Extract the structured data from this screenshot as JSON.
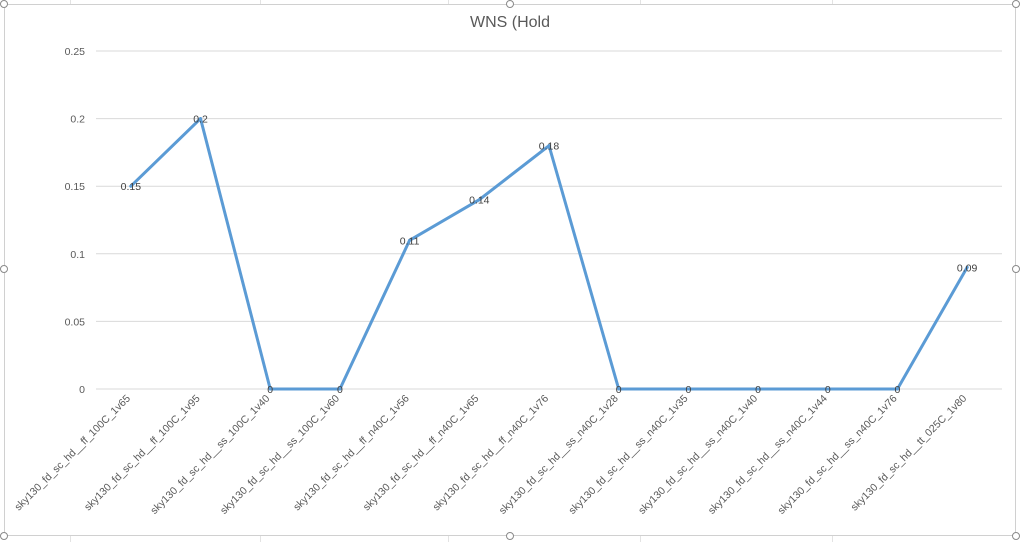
{
  "chart_data": {
    "type": "line",
    "title": "WNS (Hold",
    "xlabel": "",
    "ylabel": "",
    "ylim": [
      0,
      0.25
    ],
    "yticks": [
      "0",
      "0.05",
      "0.1",
      "0.15",
      "0.2",
      "0.25"
    ],
    "ytick_values": [
      0,
      0.05,
      0.1,
      0.15,
      0.2,
      0.25
    ],
    "grid": true,
    "legend": "none",
    "categories": [
      "sky130_fd_sc_hd__ff_100C_1v65",
      "sky130_fd_sc_hd__ff_100C_1v95",
      "sky130_fd_sc_hd__ss_100C_1v40",
      "sky130_fd_sc_hd__ss_100C_1v60",
      "sky130_fd_sc_hd__ff_n40C_1v56",
      "sky130_fd_sc_hd__ff_n40C_1v65",
      "sky130_fd_sc_hd__ff_n40C_1v76",
      "sky130_fd_sc_hd__ss_n40C_1v28",
      "sky130_fd_sc_hd__ss_n40C_1v35",
      "sky130_fd_sc_hd__ss_n40C_1v40",
      "sky130_fd_sc_hd__ss_n40C_1v44",
      "sky130_fd_sc_hd__ss_n40C_1v76",
      "sky130_fd_sc_hd__tt_025C_1v80"
    ],
    "values": [
      0.15,
      0.2,
      0,
      0,
      0.11,
      0.14,
      0.18,
      0,
      0,
      0,
      0,
      0,
      0.09
    ],
    "data_labels": [
      "0.15",
      "0.2",
      "0",
      "0",
      "0.11",
      "0.14",
      "0.18",
      "0",
      "0",
      "0",
      "0",
      "0",
      "0.09"
    ],
    "colors": {
      "line": "#5b9bd5",
      "grid": "#d9d9d9",
      "text": "#595959"
    }
  }
}
